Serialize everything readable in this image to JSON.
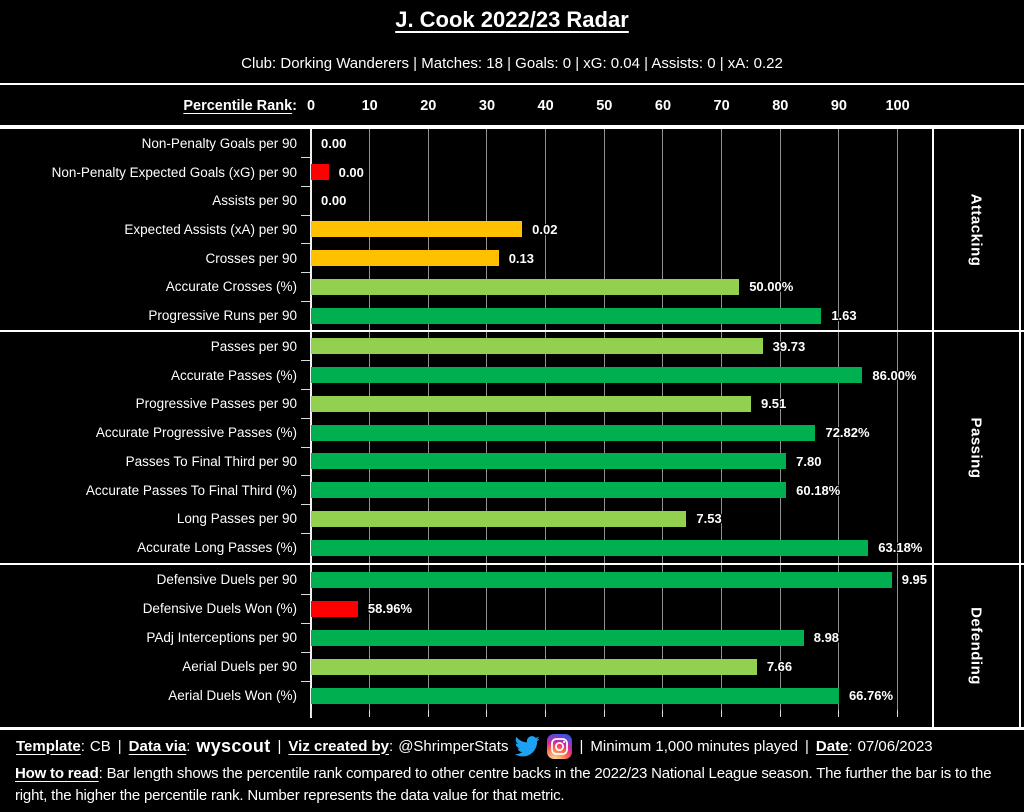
{
  "header": {
    "title": "J. Cook 2022/23 Radar",
    "subtitle": "Club: Dorking Wanderers | Matches: 18 | Goals: 0 | xG: 0.04 | Assists: 0 | xA: 0.22"
  },
  "axis": {
    "label": "Percentile Rank",
    "colon": ":",
    "ticks": [
      0,
      10,
      20,
      30,
      40,
      50,
      60,
      70,
      80,
      90,
      100
    ],
    "min": 0,
    "max": 100
  },
  "colors": {
    "green": "#00B050",
    "light_green": "#92D050",
    "amber": "#FFC000",
    "red": "#FF0000",
    "grid": "#919191",
    "twitter_blue": "#1DA1F2",
    "background": "#000000",
    "text": "#FFFFFF"
  },
  "chart_data": {
    "type": "bar",
    "title": "J. Cook 2022/23 Radar",
    "xlabel": "Percentile Rank",
    "xlim": [
      0,
      100
    ],
    "orientation": "horizontal",
    "grid": true,
    "note": "Bar length = percentile rank vs other centre backs; printed number = raw data value",
    "sections": [
      {
        "name": "Attacking",
        "rows": [
          {
            "label": "Non-Penalty Goals per 90",
            "value_label": "0.00",
            "percentile": 0,
            "color": "none"
          },
          {
            "label": "Non-Penalty Expected Goals (xG) per 90",
            "value_label": "0.00",
            "percentile": 3,
            "color": "red"
          },
          {
            "label": "Assists per 90",
            "value_label": "0.00",
            "percentile": 0,
            "color": "none"
          },
          {
            "label": "Expected Assists (xA) per 90",
            "value_label": "0.02",
            "percentile": 36,
            "color": "amber"
          },
          {
            "label": "Crosses per 90",
            "value_label": "0.13",
            "percentile": 32,
            "color": "amber"
          },
          {
            "label": "Accurate Crosses (%)",
            "value_label": "50.00%",
            "percentile": 73,
            "color": "light_green"
          },
          {
            "label": "Progressive Runs per 90",
            "value_label": "1.63",
            "percentile": 87,
            "color": "green"
          }
        ]
      },
      {
        "name": "Passing",
        "rows": [
          {
            "label": "Passes per 90",
            "value_label": "39.73",
            "percentile": 77,
            "color": "light_green"
          },
          {
            "label": "Accurate Passes (%)",
            "value_label": "86.00%",
            "percentile": 94,
            "color": "green"
          },
          {
            "label": "Progressive Passes per 90",
            "value_label": "9.51",
            "percentile": 75,
            "color": "light_green"
          },
          {
            "label": "Accurate Progressive Passes (%)",
            "value_label": "72.82%",
            "percentile": 86,
            "color": "green"
          },
          {
            "label": "Passes To Final Third per 90",
            "value_label": "7.80",
            "percentile": 81,
            "color": "green"
          },
          {
            "label": "Accurate Passes To Final Third (%)",
            "value_label": "60.18%",
            "percentile": 81,
            "color": "green"
          },
          {
            "label": "Long Passes per 90",
            "value_label": "7.53",
            "percentile": 64,
            "color": "light_green"
          },
          {
            "label": "Accurate Long Passes (%)",
            "value_label": "63.18%",
            "percentile": 95,
            "color": "green"
          }
        ]
      },
      {
        "name": "Defending",
        "rows": [
          {
            "label": "Defensive Duels per 90",
            "value_label": "9.95",
            "percentile": 99,
            "color": "green"
          },
          {
            "label": "Defensive Duels Won (%)",
            "value_label": "58.96%",
            "percentile": 8,
            "color": "red"
          },
          {
            "label": "PAdj Interceptions per 90",
            "value_label": "8.98",
            "percentile": 84,
            "color": "green"
          },
          {
            "label": "Aerial Duels per 90",
            "value_label": "7.66",
            "percentile": 76,
            "color": "light_green"
          },
          {
            "label": "Aerial Duels Won (%)",
            "value_label": "66.76%",
            "percentile": 90,
            "color": "green"
          }
        ]
      }
    ]
  },
  "footer": {
    "colon": ":",
    "sep": "|",
    "template_label": "Template",
    "template_value": "CB",
    "data_via_label": "Data via",
    "data_via_value": "wyscout",
    "viz_label": "Viz created by",
    "viz_value": "@ShrimperStats",
    "min_minutes": "Minimum 1,000 minutes played",
    "date_label": "Date",
    "date_value": "07/06/2023",
    "how_to_read_label": "How to read",
    "how_to_read_text": " Bar length shows the percentile rank compared to other centre backs in the 2022/23 National League season. The further the bar is to the right, the higher the percentile rank. Number represents the data value for that metric."
  }
}
